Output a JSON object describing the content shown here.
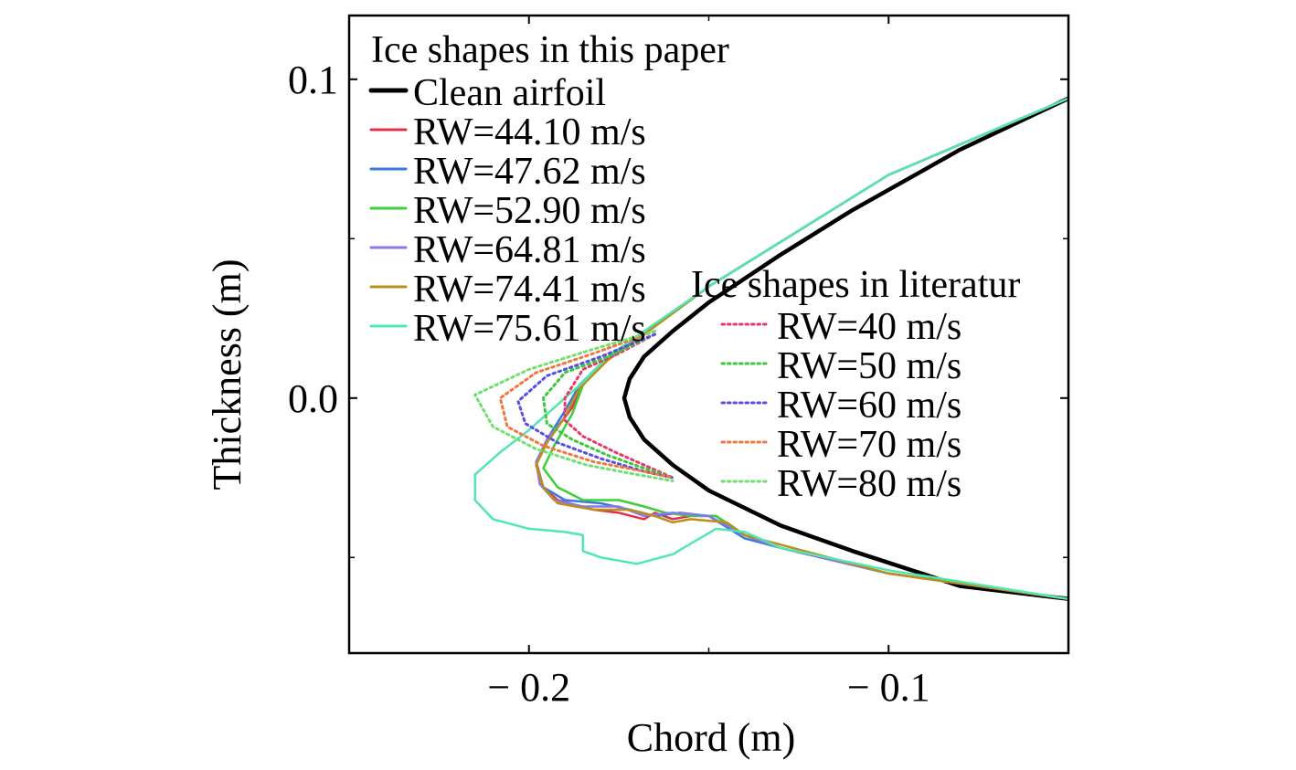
{
  "chart_data": {
    "type": "line",
    "xlabel": "Chord (m)",
    "ylabel": "Thickness (m)",
    "xlim": [
      -0.25,
      -0.05
    ],
    "ylim": [
      -0.08,
      0.12
    ],
    "x_ticks": [
      -0.2,
      -0.1
    ],
    "x_tick_labels": [
      "− 0.2",
      "− 0.1"
    ],
    "y_ticks": [
      0.1,
      0.0
    ],
    "y_tick_labels": [
      "0.1",
      "0.0"
    ],
    "grid": false,
    "legends": [
      {
        "title": "Ice shapes in this paper",
        "placement": "top-left",
        "entries": [
          "Clean airfoil",
          "RW=44.10 m/s",
          "RW=47.62 m/s",
          "RW=52.90 m/s",
          "RW=64.81 m/s",
          "RW=74.41 m/s",
          "RW=75.61 m/s"
        ]
      },
      {
        "title": "Ice shapes in literatur",
        "placement": "center-right",
        "entries": [
          "RW=40 m/s",
          "RW=50 m/s",
          "RW=60 m/s",
          "RW=70 m/s",
          "RW=80 m/s"
        ]
      }
    ],
    "series": [
      {
        "name": "Clean airfoil",
        "group": "paper",
        "style": "solid",
        "color": "#000000",
        "points": [
          [
            -0.05,
            0.094
          ],
          [
            -0.08,
            0.078
          ],
          [
            -0.11,
            0.059
          ],
          [
            -0.13,
            0.045
          ],
          [
            -0.15,
            0.03
          ],
          [
            -0.16,
            0.021
          ],
          [
            -0.168,
            0.013
          ],
          [
            -0.172,
            0.006
          ],
          [
            -0.1735,
            0.0
          ],
          [
            -0.172,
            -0.006
          ],
          [
            -0.168,
            -0.013
          ],
          [
            -0.16,
            -0.021
          ],
          [
            -0.15,
            -0.029
          ],
          [
            -0.13,
            -0.04
          ],
          [
            -0.11,
            -0.048
          ],
          [
            -0.08,
            -0.059
          ],
          [
            -0.05,
            -0.063
          ]
        ]
      },
      {
        "name": "RW=44.10 m/s",
        "group": "paper",
        "style": "solid",
        "color": "#e0304a",
        "points": [
          [
            -0.05,
            0.094
          ],
          [
            -0.1,
            0.07
          ],
          [
            -0.15,
            0.035
          ],
          [
            -0.168,
            0.02
          ],
          [
            -0.178,
            0.013
          ],
          [
            -0.185,
            0.005
          ],
          [
            -0.188,
            -0.003
          ],
          [
            -0.194,
            -0.012
          ],
          [
            -0.198,
            -0.02
          ],
          [
            -0.196,
            -0.028
          ],
          [
            -0.192,
            -0.032
          ],
          [
            -0.182,
            -0.035
          ],
          [
            -0.175,
            -0.036
          ],
          [
            -0.168,
            -0.038
          ],
          [
            -0.165,
            -0.036
          ],
          [
            -0.16,
            -0.038
          ],
          [
            -0.155,
            -0.037
          ],
          [
            -0.148,
            -0.037
          ],
          [
            -0.14,
            -0.043
          ],
          [
            -0.13,
            -0.047
          ],
          [
            -0.1,
            -0.055
          ],
          [
            -0.05,
            -0.063
          ]
        ]
      },
      {
        "name": "RW=47.62 m/s",
        "group": "paper",
        "style": "solid",
        "color": "#3a78e0",
        "points": [
          [
            -0.05,
            0.094
          ],
          [
            -0.1,
            0.07
          ],
          [
            -0.15,
            0.035
          ],
          [
            -0.168,
            0.02
          ],
          [
            -0.178,
            0.013
          ],
          [
            -0.186,
            0.004
          ],
          [
            -0.19,
            -0.004
          ],
          [
            -0.195,
            -0.013
          ],
          [
            -0.198,
            -0.021
          ],
          [
            -0.196,
            -0.028
          ],
          [
            -0.19,
            -0.032
          ],
          [
            -0.18,
            -0.033
          ],
          [
            -0.172,
            -0.035
          ],
          [
            -0.165,
            -0.037
          ],
          [
            -0.158,
            -0.036
          ],
          [
            -0.15,
            -0.037
          ],
          [
            -0.14,
            -0.044
          ],
          [
            -0.13,
            -0.047
          ],
          [
            -0.1,
            -0.055
          ],
          [
            -0.05,
            -0.063
          ]
        ]
      },
      {
        "name": "RW=52.90 m/s",
        "group": "paper",
        "style": "solid",
        "color": "#3ccf3c",
        "points": [
          [
            -0.05,
            0.094
          ],
          [
            -0.1,
            0.07
          ],
          [
            -0.15,
            0.035
          ],
          [
            -0.168,
            0.02
          ],
          [
            -0.178,
            0.013
          ],
          [
            -0.185,
            0.004
          ],
          [
            -0.188,
            -0.005
          ],
          [
            -0.193,
            -0.015
          ],
          [
            -0.196,
            -0.022
          ],
          [
            -0.192,
            -0.028
          ],
          [
            -0.185,
            -0.032
          ],
          [
            -0.175,
            -0.032
          ],
          [
            -0.168,
            -0.034
          ],
          [
            -0.162,
            -0.036
          ],
          [
            -0.155,
            -0.037
          ],
          [
            -0.148,
            -0.037
          ],
          [
            -0.14,
            -0.043
          ],
          [
            -0.13,
            -0.047
          ],
          [
            -0.1,
            -0.055
          ],
          [
            -0.05,
            -0.063
          ]
        ]
      },
      {
        "name": "RW=64.81 m/s",
        "group": "paper",
        "style": "solid",
        "color": "#8a78e8",
        "points": [
          [
            -0.05,
            0.094
          ],
          [
            -0.1,
            0.07
          ],
          [
            -0.15,
            0.035
          ],
          [
            -0.168,
            0.02
          ],
          [
            -0.178,
            0.012
          ],
          [
            -0.186,
            0.003
          ],
          [
            -0.19,
            -0.006
          ],
          [
            -0.195,
            -0.013
          ],
          [
            -0.198,
            -0.02
          ],
          [
            -0.197,
            -0.027
          ],
          [
            -0.193,
            -0.032
          ],
          [
            -0.185,
            -0.034
          ],
          [
            -0.175,
            -0.034
          ],
          [
            -0.168,
            -0.037
          ],
          [
            -0.16,
            -0.036
          ],
          [
            -0.15,
            -0.037
          ],
          [
            -0.14,
            -0.043
          ],
          [
            -0.13,
            -0.047
          ],
          [
            -0.1,
            -0.055
          ],
          [
            -0.05,
            -0.063
          ]
        ]
      },
      {
        "name": "RW=74.41 m/s",
        "group": "paper",
        "style": "solid",
        "color": "#b8901a",
        "points": [
          [
            -0.05,
            0.094
          ],
          [
            -0.1,
            0.07
          ],
          [
            -0.15,
            0.035
          ],
          [
            -0.168,
            0.02
          ],
          [
            -0.178,
            0.012
          ],
          [
            -0.186,
            0.003
          ],
          [
            -0.19,
            -0.006
          ],
          [
            -0.195,
            -0.014
          ],
          [
            -0.198,
            -0.021
          ],
          [
            -0.196,
            -0.028
          ],
          [
            -0.192,
            -0.033
          ],
          [
            -0.182,
            -0.035
          ],
          [
            -0.172,
            -0.035
          ],
          [
            -0.165,
            -0.037
          ],
          [
            -0.16,
            -0.039
          ],
          [
            -0.155,
            -0.038
          ],
          [
            -0.145,
            -0.039
          ],
          [
            -0.14,
            -0.043
          ],
          [
            -0.13,
            -0.046
          ],
          [
            -0.1,
            -0.055
          ],
          [
            -0.05,
            -0.063
          ]
        ]
      },
      {
        "name": "RW=75.61 m/s",
        "group": "paper",
        "style": "solid",
        "color": "#50e8b0",
        "points": [
          [
            -0.05,
            0.094
          ],
          [
            -0.1,
            0.07
          ],
          [
            -0.15,
            0.035
          ],
          [
            -0.168,
            0.021
          ],
          [
            -0.178,
            0.013
          ],
          [
            -0.185,
            0.005
          ],
          [
            -0.193,
            -0.003
          ],
          [
            -0.2,
            -0.01
          ],
          [
            -0.208,
            -0.017
          ],
          [
            -0.215,
            -0.024
          ],
          [
            -0.215,
            -0.032
          ],
          [
            -0.21,
            -0.038
          ],
          [
            -0.2,
            -0.041
          ],
          [
            -0.19,
            -0.042
          ],
          [
            -0.185,
            -0.043
          ],
          [
            -0.185,
            -0.048
          ],
          [
            -0.18,
            -0.05
          ],
          [
            -0.17,
            -0.052
          ],
          [
            -0.16,
            -0.049
          ],
          [
            -0.148,
            -0.041
          ],
          [
            -0.14,
            -0.042
          ],
          [
            -0.13,
            -0.047
          ],
          [
            -0.1,
            -0.054
          ],
          [
            -0.05,
            -0.063
          ]
        ]
      },
      {
        "name": "RW=40 m/s",
        "group": "literature",
        "style": "dotted",
        "color": "#e83a6a",
        "points": [
          [
            -0.165,
            0.02
          ],
          [
            -0.175,
            0.014
          ],
          [
            -0.185,
            0.009
          ],
          [
            -0.19,
            0.0
          ],
          [
            -0.19,
            -0.007
          ],
          [
            -0.185,
            -0.012
          ],
          [
            -0.176,
            -0.017
          ],
          [
            -0.168,
            -0.021
          ],
          [
            -0.16,
            -0.025
          ]
        ]
      },
      {
        "name": "RW=50 m/s",
        "group": "literature",
        "style": "dotted",
        "color": "#3cc83c",
        "points": [
          [
            -0.165,
            0.02
          ],
          [
            -0.178,
            0.013
          ],
          [
            -0.19,
            0.008
          ],
          [
            -0.196,
            0.0
          ],
          [
            -0.195,
            -0.008
          ],
          [
            -0.188,
            -0.013
          ],
          [
            -0.178,
            -0.018
          ],
          [
            -0.168,
            -0.022
          ],
          [
            -0.16,
            -0.025
          ]
        ]
      },
      {
        "name": "RW=60 m/s",
        "group": "literature",
        "style": "dotted",
        "color": "#5a50e0",
        "points": [
          [
            -0.165,
            0.02
          ],
          [
            -0.18,
            0.013
          ],
          [
            -0.195,
            0.007
          ],
          [
            -0.203,
            -0.001
          ],
          [
            -0.201,
            -0.008
          ],
          [
            -0.192,
            -0.014
          ],
          [
            -0.18,
            -0.019
          ],
          [
            -0.168,
            -0.023
          ],
          [
            -0.16,
            -0.025
          ]
        ]
      },
      {
        "name": "RW=70 m/s",
        "group": "literature",
        "style": "dotted",
        "color": "#f07840",
        "points": [
          [
            -0.165,
            0.021
          ],
          [
            -0.182,
            0.014
          ],
          [
            -0.198,
            0.008
          ],
          [
            -0.208,
            0.0
          ],
          [
            -0.206,
            -0.009
          ],
          [
            -0.196,
            -0.015
          ],
          [
            -0.182,
            -0.02
          ],
          [
            -0.168,
            -0.023
          ],
          [
            -0.16,
            -0.025
          ]
        ]
      },
      {
        "name": "RW=80 m/s",
        "group": "literature",
        "style": "dotted",
        "color": "#70e070",
        "points": [
          [
            -0.165,
            0.021
          ],
          [
            -0.183,
            0.015
          ],
          [
            -0.2,
            0.009
          ],
          [
            -0.215,
            0.001
          ],
          [
            -0.21,
            -0.009
          ],
          [
            -0.198,
            -0.016
          ],
          [
            -0.184,
            -0.021
          ],
          [
            -0.17,
            -0.024
          ],
          [
            -0.16,
            -0.026
          ]
        ]
      }
    ]
  }
}
